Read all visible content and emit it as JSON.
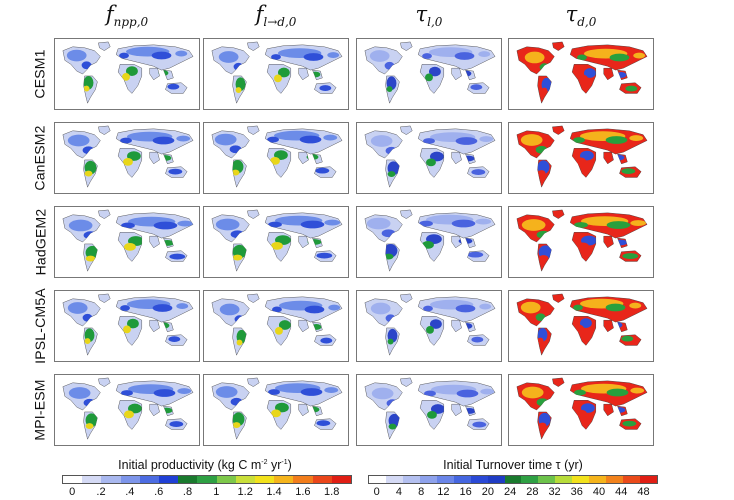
{
  "columns": [
    {
      "base": "f",
      "sub": "npp,0"
    },
    {
      "base": "f",
      "sub": "l→d,0"
    },
    {
      "base": "τ",
      "sub": "l,0"
    },
    {
      "base": "τ",
      "sub": "d,0"
    }
  ],
  "rows": [
    "CESM1",
    "CanESM2",
    "HadGEM2",
    "IPSL-CM5A",
    "MPI-ESM"
  ],
  "panel_palettes": [
    [
      "#c9d2f2",
      "#6c8ce8",
      "#2f4fd8",
      "#1f9a3a",
      "#e8d61a"
    ],
    [
      "#c9d2f2",
      "#6c8ce8",
      "#2f4fd8",
      "#1f9a3a",
      "#e8d61a"
    ],
    [
      "#c9d2f2",
      "#9fb0ee",
      "#4a63df",
      "#2b45c8",
      "#1f9a3a"
    ],
    [
      "#e8261a",
      "#f5b21c",
      "#28a03d",
      "#2f4fd8",
      "#e8261a"
    ]
  ],
  "colorbars": [
    {
      "title": "Initial productivity (kg C m",
      "title_sup": "-2",
      "title_mid": " yr",
      "title_sup2": "-1",
      "title_end": ")",
      "colors": [
        "#ffffff",
        "#d5daf5",
        "#a9b8ef",
        "#7d95ea",
        "#4c6ce2",
        "#2040d6",
        "#1a7a2e",
        "#2ea043",
        "#7dc84a",
        "#c9df3a",
        "#f2e21c",
        "#f5b41c",
        "#f27d1c",
        "#ea461a",
        "#e01e14"
      ],
      "ticks": [
        "0",
        ".2",
        ".4",
        ".6",
        ".8",
        "1",
        "1.2",
        "1.4",
        "1.6",
        "1.8"
      ]
    },
    {
      "title": "Initial Turnover time τ (yr)",
      "colors": [
        "#ffffff",
        "#d5daf5",
        "#b4c0f0",
        "#8ea2ec",
        "#6a85e8",
        "#4566e0",
        "#2a49d6",
        "#1f3cc4",
        "#1a7a2e",
        "#2ea043",
        "#6cc24a",
        "#b7dc3a",
        "#f2e21c",
        "#f5b41c",
        "#f2821c",
        "#ea4a1a",
        "#e01e14"
      ],
      "ticks": [
        "0",
        "4",
        "8",
        "12",
        "16",
        "20",
        "24",
        "28",
        "32",
        "36",
        "40",
        "44",
        "48"
      ]
    }
  ]
}
